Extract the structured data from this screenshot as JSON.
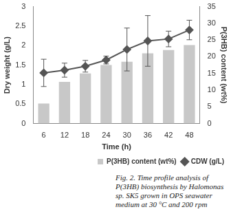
{
  "chart_data": {
    "type": "bar",
    "x_label": "Time (h)",
    "y_label": "Dry weight (g/L)",
    "y2_label": "P(3HB) content (wt%)",
    "caption": "Fig. 2. Time profile analysis of P(3HB) biosynthesis by Halomonas sp. SK5 grown in OPS seawater medium at 30 °C and 200 rpm",
    "categories": [
      "6",
      "12",
      "18",
      "24",
      "30",
      "36",
      "42",
      "48"
    ],
    "series": [
      {
        "name": "P(3HB) content (wt%)",
        "type": "bar",
        "axis": "y2",
        "color": "#c8c8c8",
        "values": [
          6,
          12.5,
          15,
          17.5,
          18.5,
          21,
          22,
          23.5
        ]
      },
      {
        "name": "CDW (g/L)",
        "type": "line",
        "color": "#555555",
        "marker": "diamond",
        "values": [
          1.3,
          1.37,
          1.47,
          1.63,
          1.9,
          2.12,
          2.17,
          2.4
        ],
        "errors": [
          0.35,
          0.18,
          0.15,
          0.1,
          0.55,
          0.65,
          0.2,
          0.25
        ]
      }
    ],
    "ylim": [
      0,
      3
    ],
    "yticks": [
      0,
      0.5,
      1,
      1.5,
      2,
      2.5,
      3
    ],
    "y2lim": [
      0,
      35
    ],
    "y2ticks": [
      0,
      5,
      10,
      15,
      20,
      25,
      30,
      35
    ],
    "grid": false,
    "legend": "bottom"
  }
}
